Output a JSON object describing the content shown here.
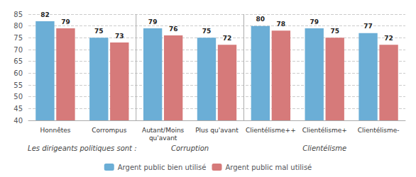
{
  "chart_data": {
    "type": "bar",
    "categories": [
      "Honnêtes",
      "Corrompus",
      "Autant/Moins\nqu'avant",
      "Plus qu'avant",
      "Clientélisme++",
      "Clientélisme+",
      "Clientélisme-"
    ],
    "series": [
      {
        "name": "Argent public bien utilisé",
        "color": "#6baed6",
        "values": [
          82,
          75,
          79,
          75,
          80,
          79,
          77
        ]
      },
      {
        "name": "Argent public mal utilisé",
        "color": "#d67a7a",
        "values": [
          79,
          73,
          76,
          72,
          78,
          75,
          72
        ]
      }
    ],
    "annotations": [
      {
        "text": "Les dirigeants politiques sont :",
        "categories": [
          "Honnêtes",
          "Corrompus"
        ]
      },
      {
        "text": "Corruption",
        "categories": [
          "Autant/Moins\nqu'avant",
          "Plus qu'avant"
        ]
      },
      {
        "text": "Clientélisme",
        "categories": [
          "Clientélisme++",
          "Clientélisme+",
          "Clientélisme-"
        ]
      }
    ],
    "ylim": [
      40,
      85
    ],
    "yticks": [
      40,
      45,
      50,
      55,
      60,
      65,
      70,
      75,
      80,
      85
    ],
    "grid": true,
    "data_labels": true,
    "legend": "bottom"
  }
}
